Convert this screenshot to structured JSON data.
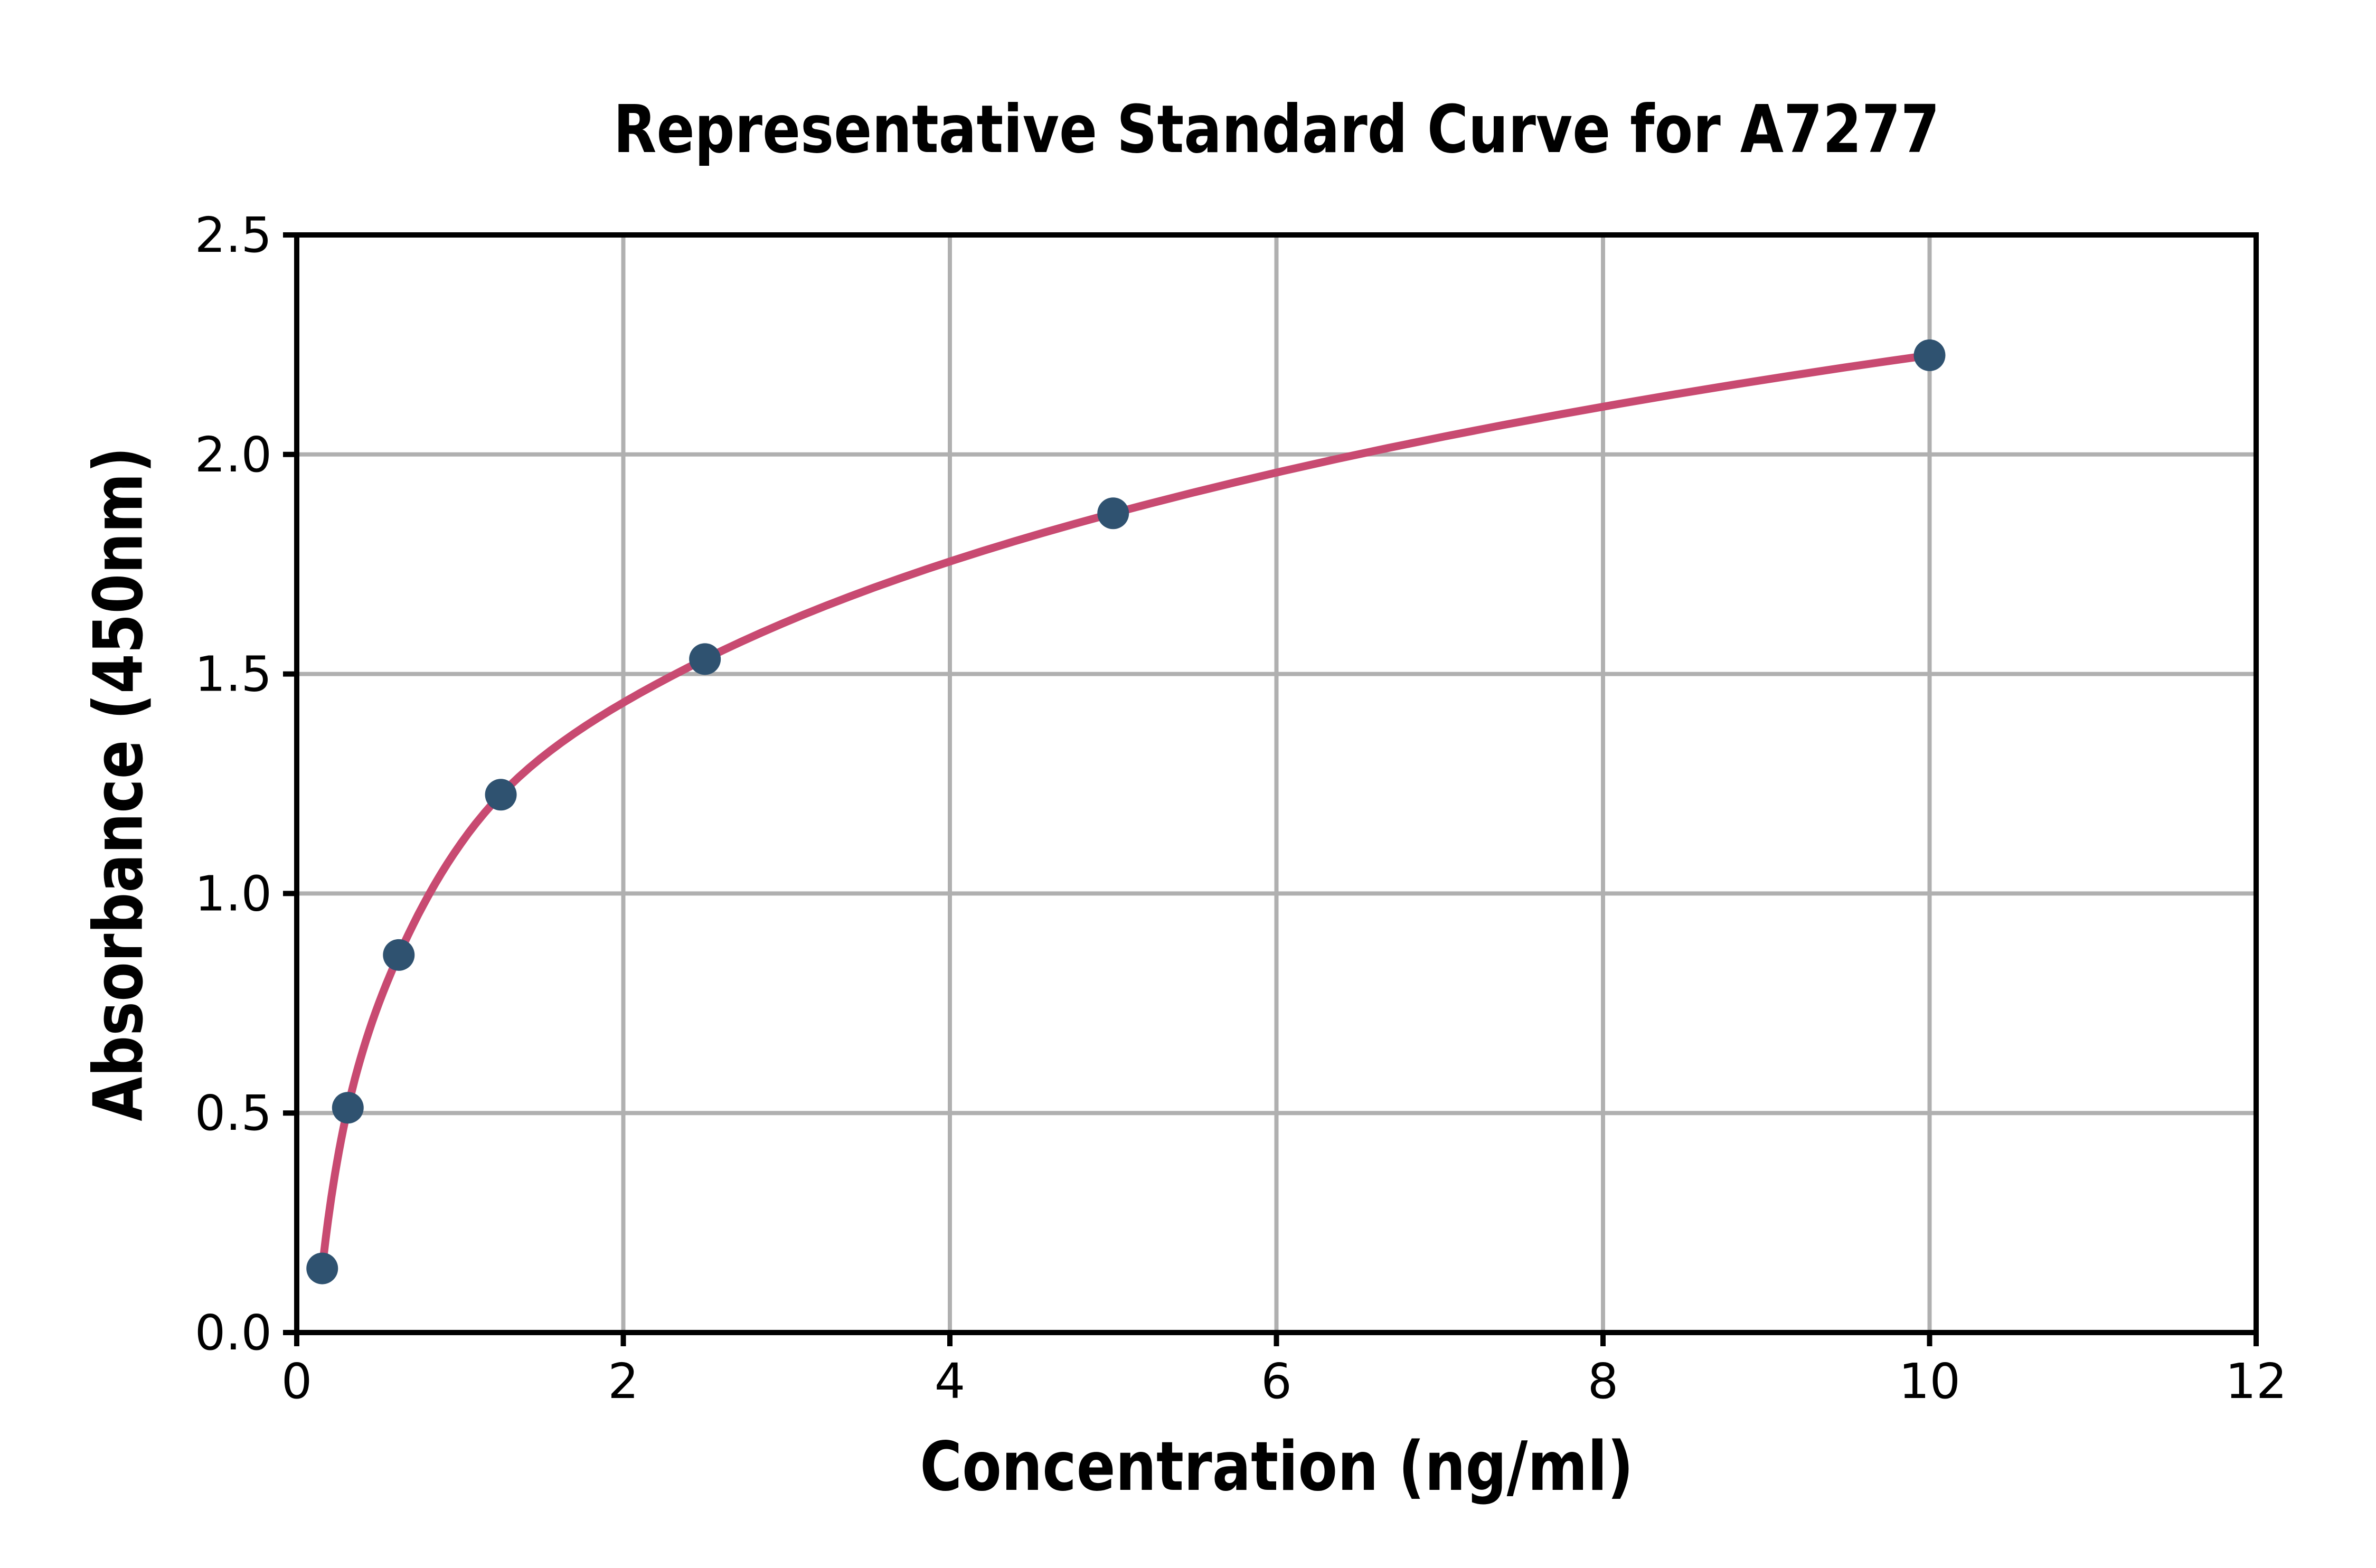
{
  "chart_data": {
    "type": "scatter",
    "title": "Representative Standard Curve for A7277",
    "xlabel": "Concentration (ng/ml)",
    "ylabel": "Absorbance (450nm)",
    "xlim": [
      0,
      12
    ],
    "ylim": [
      0,
      2.5
    ],
    "xticks": [
      0,
      2,
      4,
      6,
      8,
      10,
      12
    ],
    "xtick_labels": [
      "0",
      "2",
      "4",
      "6",
      "8",
      "10",
      "12"
    ],
    "yticks": [
      0,
      0.5,
      1,
      1.5,
      2,
      2.5
    ],
    "ytick_labels": [
      "0.0",
      "0.5",
      "1.0",
      "1.5",
      "2.0",
      "2.5"
    ],
    "grid": true,
    "legend": "none",
    "background_color": "#ffffff",
    "axis_color": "#000000",
    "grid_color": "#b0b0b0",
    "series": [
      {
        "name": "standard-curve-fit-line",
        "type": "line",
        "interpolation": "smooth-log-x",
        "color": "#c84a71",
        "x": [
          0.156,
          0.313,
          0.625,
          1.25,
          2.5,
          5,
          10
        ],
        "y": [
          0.146,
          0.512,
          0.86,
          1.225,
          1.534,
          1.866,
          2.226
        ]
      },
      {
        "name": "standard-data-points",
        "type": "scatter",
        "color": "#2f5270",
        "x": [
          0.156,
          0.313,
          0.625,
          1.25,
          2.5,
          5,
          10
        ],
        "y": [
          0.146,
          0.512,
          0.86,
          1.225,
          1.534,
          1.866,
          2.226
        ]
      }
    ]
  }
}
